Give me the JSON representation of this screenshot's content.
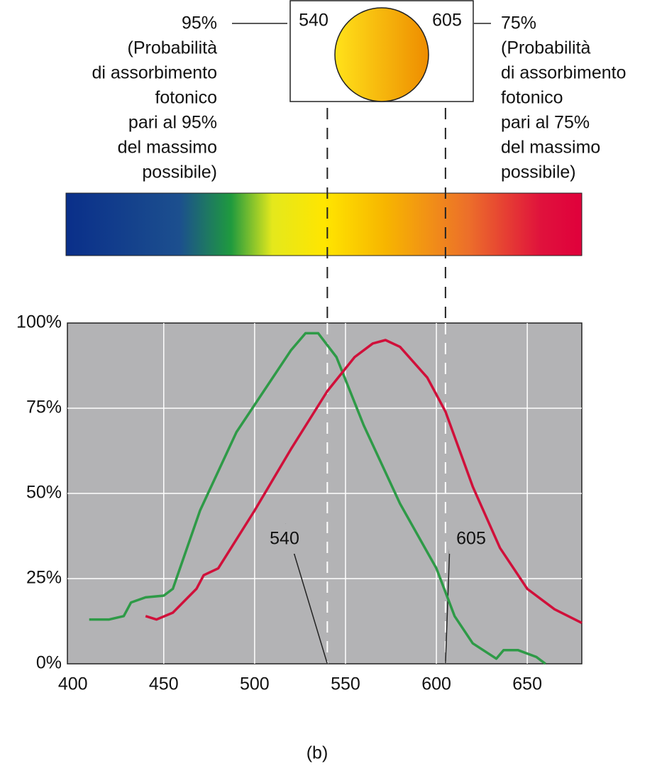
{
  "chart_data": {
    "type": "line",
    "xlim": [
      397,
      680
    ],
    "xticks": [
      400,
      450,
      500,
      550,
      600,
      650
    ],
    "ylim": [
      0,
      100
    ],
    "yticks": [
      {
        "value": 0,
        "label": "0%"
      },
      {
        "value": 25,
        "label": "25%"
      },
      {
        "value": 50,
        "label": "50%"
      },
      {
        "value": 75,
        "label": "75%"
      },
      {
        "value": 100,
        "label": "100%"
      }
    ],
    "grid": true,
    "series": [
      {
        "color": "#2e9a47",
        "x": [
          409,
          420,
          428,
          432,
          440,
          450,
          455,
          470,
          490,
          505,
          520,
          528,
          535,
          545,
          560,
          580,
          600,
          610,
          620,
          633,
          637,
          645,
          655,
          660
        ],
        "values": [
          13,
          13,
          14,
          18,
          19.5,
          20,
          22,
          45,
          68,
          80,
          92,
          97,
          97,
          90,
          70,
          47,
          28,
          14,
          6,
          1.5,
          4,
          4,
          2,
          0
        ]
      },
      {
        "color": "#d0103a",
        "x": [
          440,
          446,
          455,
          468,
          472,
          480,
          500,
          520,
          540,
          555,
          565,
          572,
          580,
          595,
          605,
          620,
          635,
          650,
          665,
          680
        ],
        "values": [
          14,
          13,
          15,
          22,
          26,
          28,
          45,
          63,
          80,
          90,
          94,
          95,
          93,
          84,
          74,
          52,
          34,
          22,
          16,
          12
        ]
      }
    ],
    "markers": [
      540,
      605
    ],
    "left_note": [
      "95%",
      "(Probabilità",
      "di assorbimento",
      "fotonico",
      "pari al 95%",
      "del massimo",
      "possibile)"
    ],
    "right_note": [
      "75%",
      "(Probabilità",
      "di assorbimento",
      "fotonico",
      "pari al 75%",
      "del massimo",
      "possibile)"
    ],
    "caption": "(b)"
  }
}
